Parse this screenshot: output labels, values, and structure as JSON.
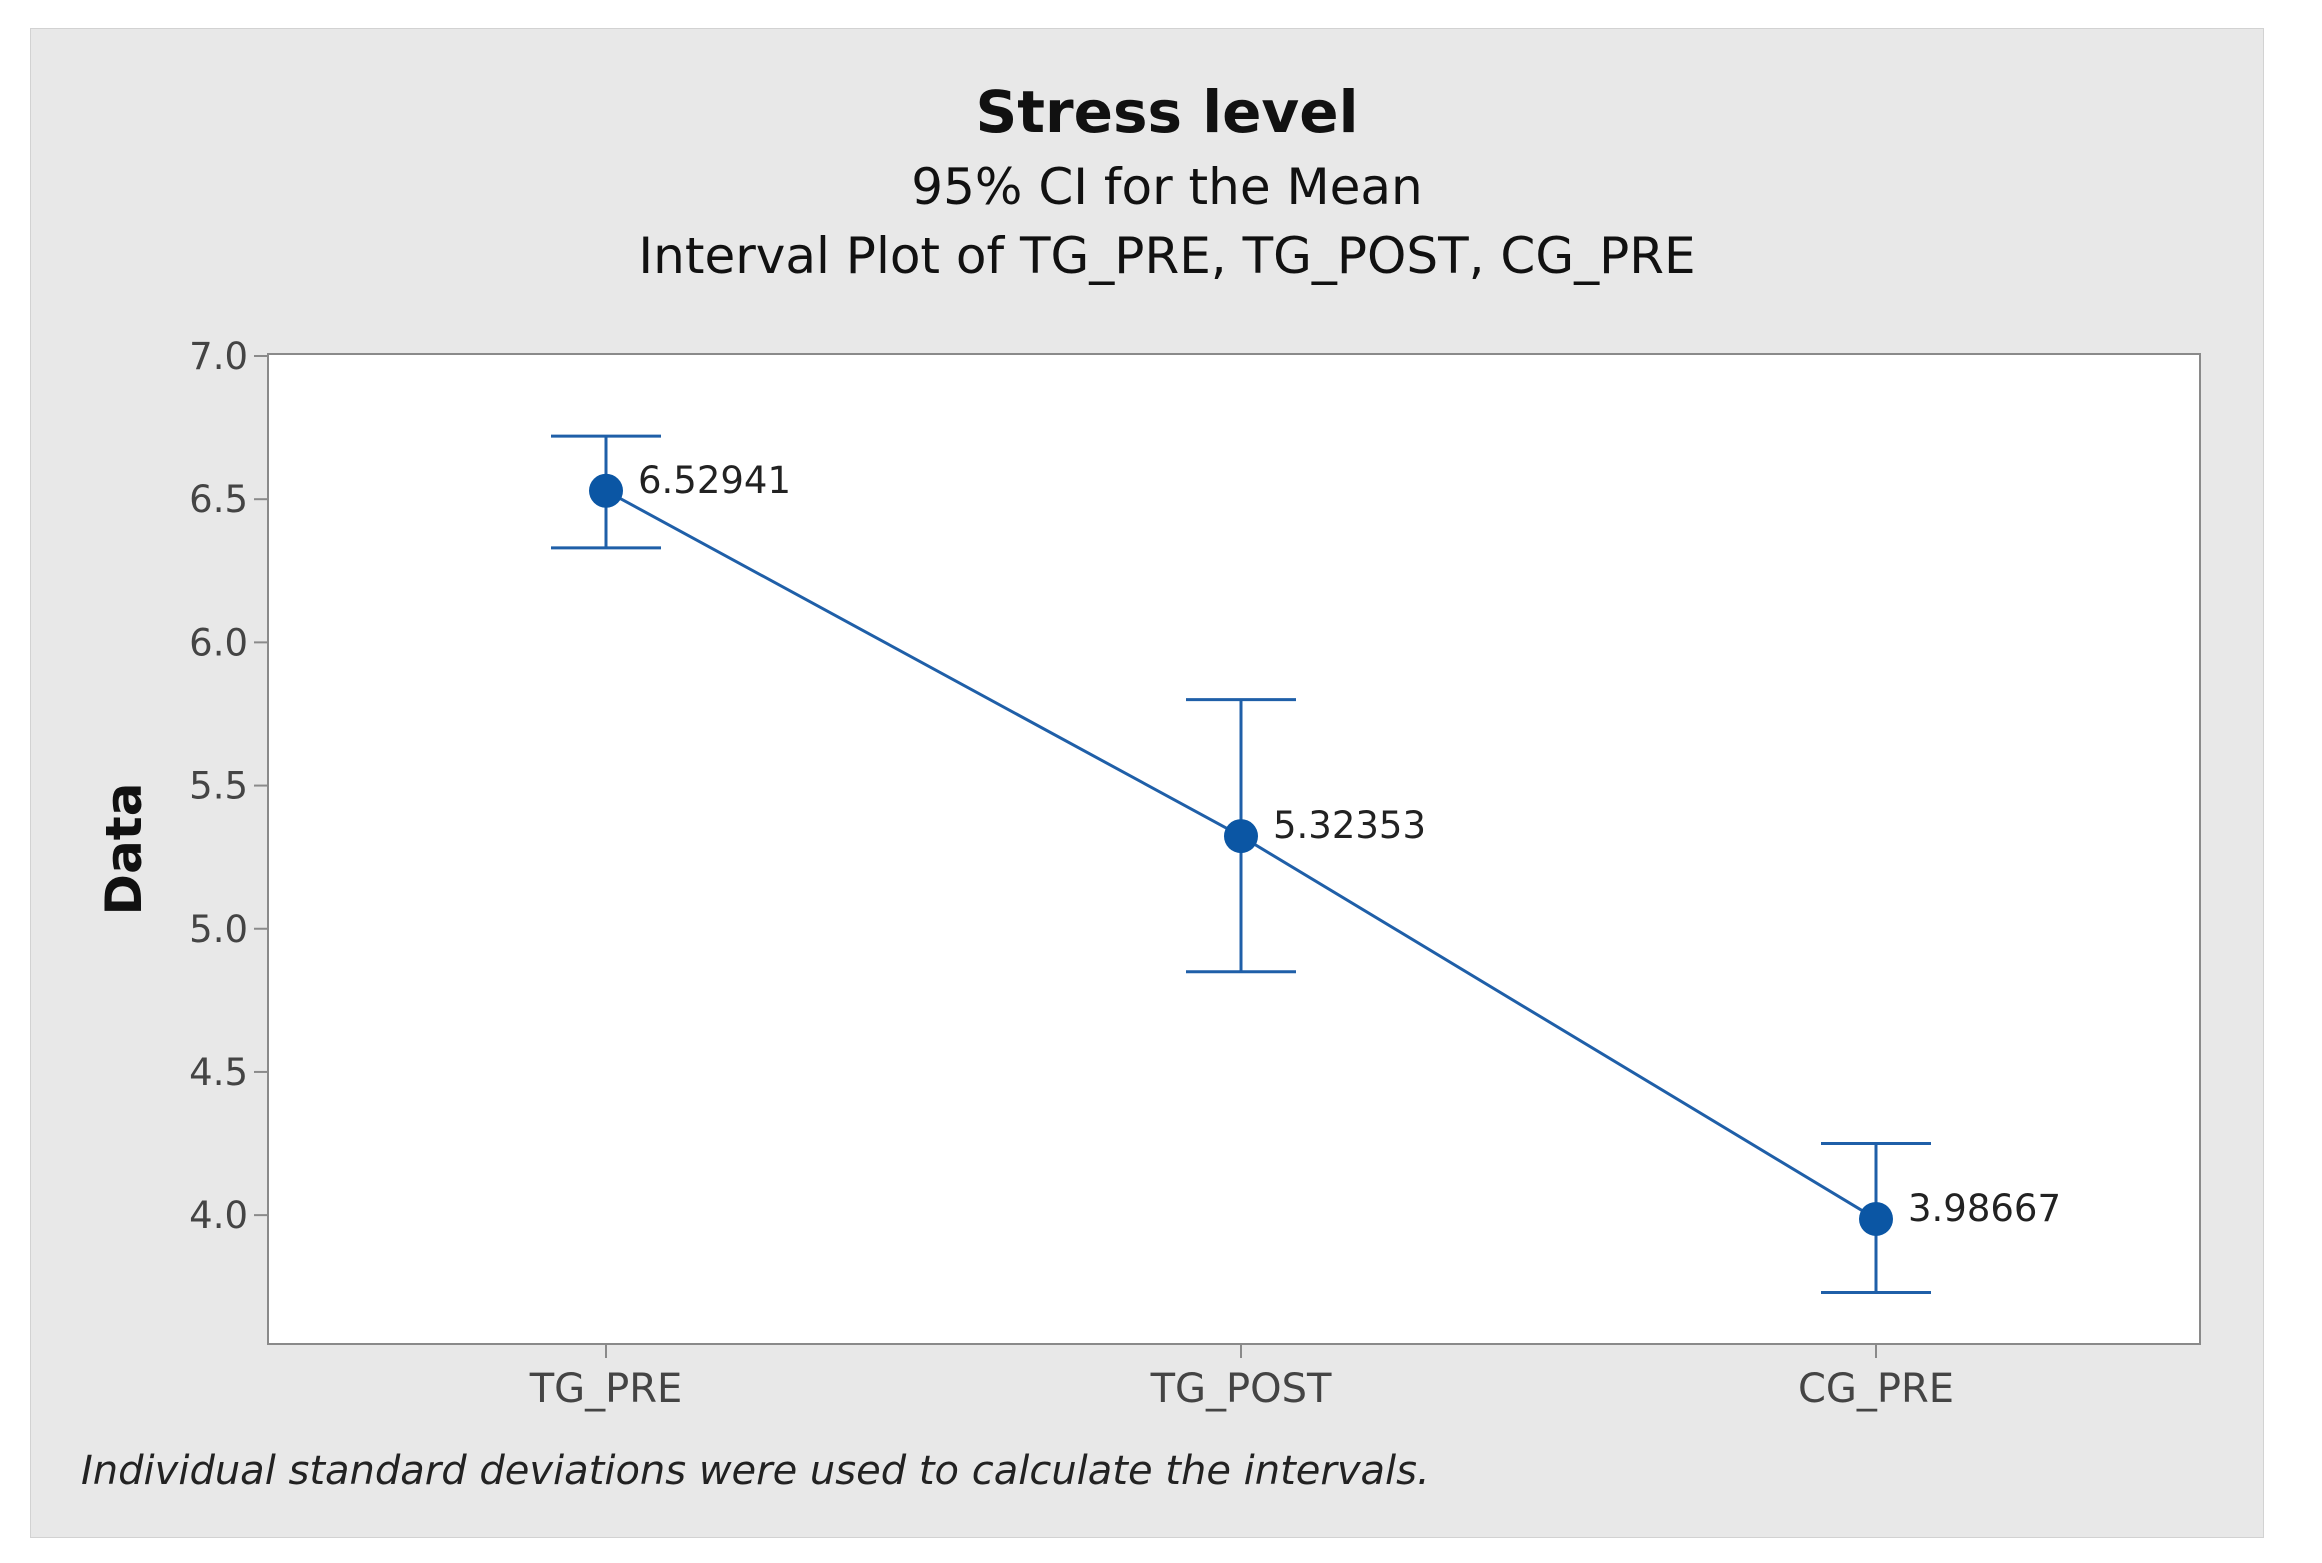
{
  "chart_data": {
    "type": "interval",
    "title": "Stress level",
    "subtitles": [
      "95% CI for the Mean",
      "Interval Plot of TG_PRE, TG_POST, CG_PRE"
    ],
    "xlabel": "",
    "ylabel": "Data",
    "ylim": [
      3.55,
      7.0
    ],
    "yticks": [
      4.0,
      4.5,
      5.0,
      5.5,
      6.0,
      6.5,
      7.0
    ],
    "ytick_labels": [
      "4.0",
      "4.5",
      "5.0",
      "5.5",
      "6.0",
      "6.5",
      "7.0"
    ],
    "categories": [
      "TG_PRE",
      "TG_POST",
      "CG_PRE"
    ],
    "means": [
      6.52941,
      5.32353,
      3.98667
    ],
    "mean_labels": [
      "6.52941",
      "5.32353",
      "3.98667"
    ],
    "ci_lower": [
      6.33,
      4.85,
      3.73
    ],
    "ci_upper": [
      6.72,
      5.8,
      4.25
    ],
    "footnote": "Individual standard deviations were used to calculate the intervals.",
    "colors": {
      "series": "#1f5fa8",
      "marker": "#0b56a4",
      "background": "#e8e8e8",
      "plot_area": "#ffffff",
      "axis": "#8a8a8a"
    }
  }
}
